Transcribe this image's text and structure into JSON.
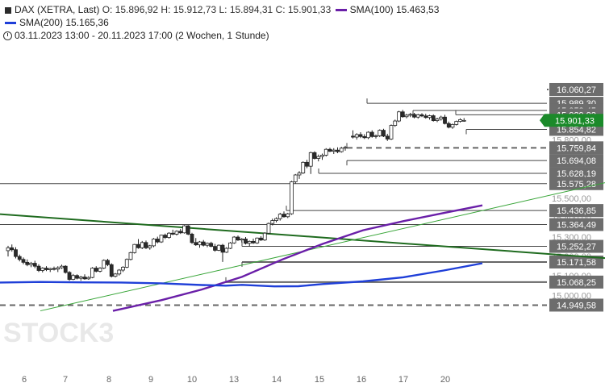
{
  "header": {
    "instrument": "DAX (XETRA, Last)",
    "ohlc": "O: 15.896,92  H: 15.912,73  L: 15.894,31  C: 15.901,33",
    "sma100_label": "SMA(100)",
    "sma100_value": "15.463,53",
    "sma200_label": "SMA(200)",
    "sma200_value": "15.165,36",
    "period": "03.11.2023 13:00 - 20.11.2023 17:00",
    "interval": "(2 Wochen, 1 Stunde)"
  },
  "watermark": "STOCK3",
  "colors": {
    "up": "#ffffff",
    "down": "#2b2b2b",
    "sma100": "#6a1fa8",
    "sma200": "#1f3fd8",
    "trend_dark": "#1f6b1f",
    "trend_light": "#3aa63a",
    "last_price_box": "#1b8a2a"
  },
  "chart_data": {
    "type": "candlestick",
    "title": "DAX (XETRA, Last)",
    "x_ticks": [
      "6",
      "7",
      "8",
      "9",
      "10",
      "13",
      "14",
      "15",
      "16",
      "17",
      "20"
    ],
    "y_ticks": [
      "15.000,00",
      "15.100,00",
      "15.200,00",
      "15.300,00",
      "15.400,00",
      "15.500,00",
      "15.600,00",
      "15.800,00",
      "15.900,00"
    ],
    "ylim": [
      14920,
      16090
    ],
    "last_price": {
      "value": 15901.33,
      "label": "15.901,33"
    },
    "levels": [
      {
        "value": 16060.27,
        "label": "16.060,27",
        "style": "solid"
      },
      {
        "value": 15989.3,
        "label": "15.989,30",
        "style": "solid"
      },
      {
        "value": 15952.45,
        "label": "15.952,45",
        "style": "solid"
      },
      {
        "value": 15929.93,
        "label": "15.929,93",
        "style": "solid"
      },
      {
        "value": 15854.82,
        "label": "15.854,82",
        "style": "solid"
      },
      {
        "value": 15759.84,
        "label": "15.759,84",
        "style": "dashed"
      },
      {
        "value": 15694.08,
        "label": "15.694,08",
        "style": "solid"
      },
      {
        "value": 15628.19,
        "label": "15.628,19",
        "style": "solid"
      },
      {
        "value": 15575.28,
        "label": "15.575,28",
        "style": "solid"
      },
      {
        "value": 15436.85,
        "label": "15.436,85",
        "style": "solid"
      },
      {
        "value": 15364.49,
        "label": "15.364,49",
        "style": "solid"
      },
      {
        "value": 15252.27,
        "label": "15.252,27",
        "style": "solid"
      },
      {
        "value": 15171.58,
        "label": "15.171,58",
        "style": "solid"
      },
      {
        "value": 15068.25,
        "label": "15.068,25",
        "style": "solid"
      },
      {
        "value": 14949.58,
        "label": "14.949,58",
        "style": "dashed"
      }
    ],
    "series": [
      {
        "name": "SMA(100)",
        "x": [
          140,
          200,
          250,
          300,
          350,
          400,
          450,
          500,
          550,
          598
        ],
        "y": [
          14920,
          14975,
          15030,
          15095,
          15185,
          15265,
          15335,
          15382,
          15424,
          15463.53
        ]
      },
      {
        "name": "SMA(200)",
        "x": [
          0,
          50,
          100,
          150,
          200,
          250,
          280,
          300,
          340,
          370,
          400,
          450,
          500,
          550,
          598
        ],
        "y": [
          15066,
          15069,
          15067,
          15066,
          15062,
          15053,
          15050,
          15054,
          15046,
          15047,
          15058,
          15072,
          15093,
          15128,
          15165.36
        ]
      }
    ],
    "trendlines": [
      {
        "from": [
          0,
          15418
        ],
        "to": [
          750,
          15192
        ]
      },
      {
        "from": [
          50,
          14920
        ],
        "to": [
          750,
          15580
        ]
      }
    ],
    "candles": [
      [
        0,
        15230,
        15255,
        15200,
        15245
      ],
      [
        5,
        15245,
        15262,
        15225,
        15235
      ],
      [
        10,
        15235,
        15248,
        15190,
        15200
      ],
      [
        15,
        15200,
        15210,
        15175,
        15185
      ],
      [
        20,
        15185,
        15195,
        15160,
        15170
      ],
      [
        25,
        15170,
        15185,
        15150,
        15158
      ],
      [
        30,
        15158,
        15172,
        15145,
        15165
      ],
      [
        35,
        15165,
        15178,
        15140,
        15150
      ],
      [
        40,
        15150,
        15160,
        15120,
        15128
      ],
      [
        45,
        15128,
        15145,
        15118,
        15140
      ],
      [
        50,
        15140,
        15150,
        15125,
        15132
      ],
      [
        55,
        15132,
        15142,
        15120,
        15138
      ],
      [
        60,
        15138,
        15148,
        15128,
        15135
      ],
      [
        65,
        15135,
        15150,
        15120,
        15142
      ],
      [
        70,
        15142,
        15158,
        15136,
        15150
      ],
      [
        75,
        15150,
        15155,
        15112,
        15118
      ],
      [
        80,
        15118,
        15125,
        15075,
        15082
      ],
      [
        85,
        15082,
        15110,
        15078,
        15102
      ],
      [
        90,
        15102,
        15108,
        15082,
        15088
      ],
      [
        95,
        15088,
        15100,
        15075,
        15094
      ],
      [
        100,
        15094,
        15108,
        15080,
        15085
      ],
      [
        105,
        15085,
        15098,
        15080,
        15092
      ],
      [
        110,
        15092,
        15145,
        15088,
        15140
      ],
      [
        115,
        15140,
        15150,
        15118,
        15124
      ],
      [
        120,
        15124,
        15145,
        15118,
        15140
      ],
      [
        125,
        15140,
        15185,
        15135,
        15180
      ],
      [
        130,
        15180,
        15188,
        15150,
        15158
      ],
      [
        135,
        15158,
        15165,
        15092,
        15098
      ],
      [
        140,
        15098,
        15115,
        15092,
        15110
      ],
      [
        145,
        15110,
        15135,
        15102,
        15130
      ],
      [
        150,
        15130,
        15150,
        15120,
        15145
      ],
      [
        155,
        15145,
        15190,
        15140,
        15185
      ],
      [
        160,
        15185,
        15225,
        15180,
        15220
      ],
      [
        165,
        15220,
        15265,
        15215,
        15262
      ],
      [
        170,
        15262,
        15290,
        15240,
        15245
      ],
      [
        175,
        15245,
        15280,
        15238,
        15272
      ],
      [
        180,
        15272,
        15282,
        15238,
        15245
      ],
      [
        185,
        15245,
        15260,
        15235,
        15255
      ],
      [
        190,
        15255,
        15295,
        15248,
        15290
      ],
      [
        195,
        15290,
        15302,
        15268,
        15275
      ],
      [
        200,
        15275,
        15312,
        15270,
        15310
      ],
      [
        205,
        15310,
        15318,
        15290,
        15298
      ],
      [
        210,
        15298,
        15325,
        15292,
        15320
      ],
      [
        215,
        15320,
        15338,
        15310,
        15315
      ],
      [
        220,
        15315,
        15335,
        15308,
        15330
      ],
      [
        225,
        15330,
        15342,
        15316,
        15322
      ],
      [
        230,
        15322,
        15362,
        15318,
        15358
      ],
      [
        235,
        15358,
        15362,
        15310,
        15315
      ],
      [
        240,
        15315,
        15322,
        15265,
        15272
      ],
      [
        245,
        15272,
        15295,
        15255,
        15260
      ],
      [
        250,
        15260,
        15280,
        15245,
        15275
      ],
      [
        255,
        15275,
        15285,
        15252,
        15258
      ],
      [
        260,
        15258,
        15272,
        15248,
        15268
      ],
      [
        265,
        15268,
        15276,
        15248,
        15252
      ],
      [
        270,
        15252,
        15265,
        15225,
        15232
      ],
      [
        275,
        15232,
        15262,
        15228,
        15258
      ],
      [
        280,
        15258,
        15265,
        15172,
        15222
      ],
      [
        285,
        15222,
        15248,
        15218,
        15242
      ],
      [
        290,
        15242,
        15275,
        15238,
        15270
      ],
      [
        295,
        15270,
        15305,
        15265,
        15300
      ],
      [
        300,
        15300,
        15308,
        15280,
        15285
      ],
      [
        305,
        15285,
        15295,
        15272,
        15290
      ],
      [
        310,
        15290,
        15300,
        15262,
        15268
      ],
      [
        315,
        15268,
        15282,
        15252,
        15278
      ],
      [
        320,
        15278,
        15292,
        15265,
        15270
      ],
      [
        325,
        15270,
        15298,
        15265,
        15295
      ],
      [
        330,
        15295,
        15305,
        15280,
        15285
      ],
      [
        335,
        15285,
        15325,
        15280,
        15320
      ],
      [
        340,
        15320,
        15375,
        15315,
        15370
      ],
      [
        345,
        15370,
        15395,
        15360,
        15385
      ],
      [
        350,
        15385,
        15402,
        15376,
        15395
      ],
      [
        355,
        15395,
        15425,
        15385,
        15418
      ],
      [
        360,
        15418,
        15432,
        15400,
        15405
      ],
      [
        365,
        15405,
        15425,
        15398,
        15420
      ],
      [
        370,
        15420,
        15590,
        15415,
        15585
      ],
      [
        375,
        15585,
        15625,
        15575,
        15620
      ],
      [
        380,
        15620,
        15640,
        15600,
        15630
      ],
      [
        385,
        15630,
        15690,
        15625,
        15685
      ],
      [
        390,
        15685,
        15698,
        15655,
        15665
      ],
      [
        395,
        15665,
        15740,
        15625,
        15735
      ],
      [
        400,
        15735,
        15742,
        15700,
        15705
      ],
      [
        405,
        15705,
        15725,
        15690,
        15715
      ],
      [
        410,
        15715,
        15730,
        15698,
        15722
      ],
      [
        415,
        15722,
        15758,
        15715,
        15752
      ],
      [
        420,
        15752,
        15760,
        15738,
        15742
      ],
      [
        425,
        15742,
        15758,
        15728,
        15748
      ],
      [
        430,
        15748,
        15762,
        15732,
        15740
      ],
      [
        435,
        15740,
        15765,
        15735,
        15758
      ],
      [
        440,
        15758,
        15770,
        15745,
        15762
      ],
      [
        450,
        15820,
        15850,
        15808,
        15815
      ],
      [
        455,
        15815,
        15835,
        15802,
        15828
      ],
      [
        460,
        15828,
        15840,
        15810,
        15818
      ],
      [
        465,
        15818,
        15830,
        15805,
        15812
      ],
      [
        470,
        15812,
        15845,
        15805,
        15840
      ],
      [
        475,
        15840,
        15850,
        15812,
        15818
      ],
      [
        480,
        15818,
        15828,
        15808,
        15822
      ],
      [
        485,
        15822,
        15855,
        15815,
        15850
      ],
      [
        490,
        15850,
        15858,
        15815,
        15820
      ],
      [
        495,
        15820,
        15832,
        15795,
        15805
      ],
      [
        500,
        15805,
        15880,
        15800,
        15875
      ],
      [
        505,
        15875,
        15905,
        15868,
        15898
      ],
      [
        510,
        15898,
        15950,
        15892,
        15945
      ],
      [
        515,
        15945,
        15955,
        15915,
        15920
      ],
      [
        520,
        15920,
        15935,
        15912,
        15928
      ],
      [
        525,
        15928,
        15940,
        15918,
        15932
      ],
      [
        530,
        15932,
        15940,
        15912,
        15918
      ],
      [
        535,
        15918,
        15935,
        15910,
        15930
      ],
      [
        540,
        15930,
        15938,
        15918,
        15924
      ],
      [
        545,
        15924,
        15935,
        15910,
        15916
      ],
      [
        550,
        15916,
        15930,
        15905,
        15925
      ],
      [
        555,
        15925,
        15932,
        15895,
        15900
      ],
      [
        560,
        15900,
        15915,
        15892,
        15908
      ],
      [
        565,
        15908,
        15925,
        15900,
        15918
      ],
      [
        570,
        15918,
        15930,
        15880,
        15885
      ],
      [
        575,
        15885,
        15895,
        15860,
        15866
      ],
      [
        580,
        15866,
        15885,
        15858,
        15880
      ],
      [
        585,
        15880,
        15900,
        15875,
        15896
      ],
      [
        590,
        15896,
        15912,
        15890,
        15905
      ],
      [
        595,
        15897,
        15913,
        15894,
        15901
      ]
    ]
  }
}
